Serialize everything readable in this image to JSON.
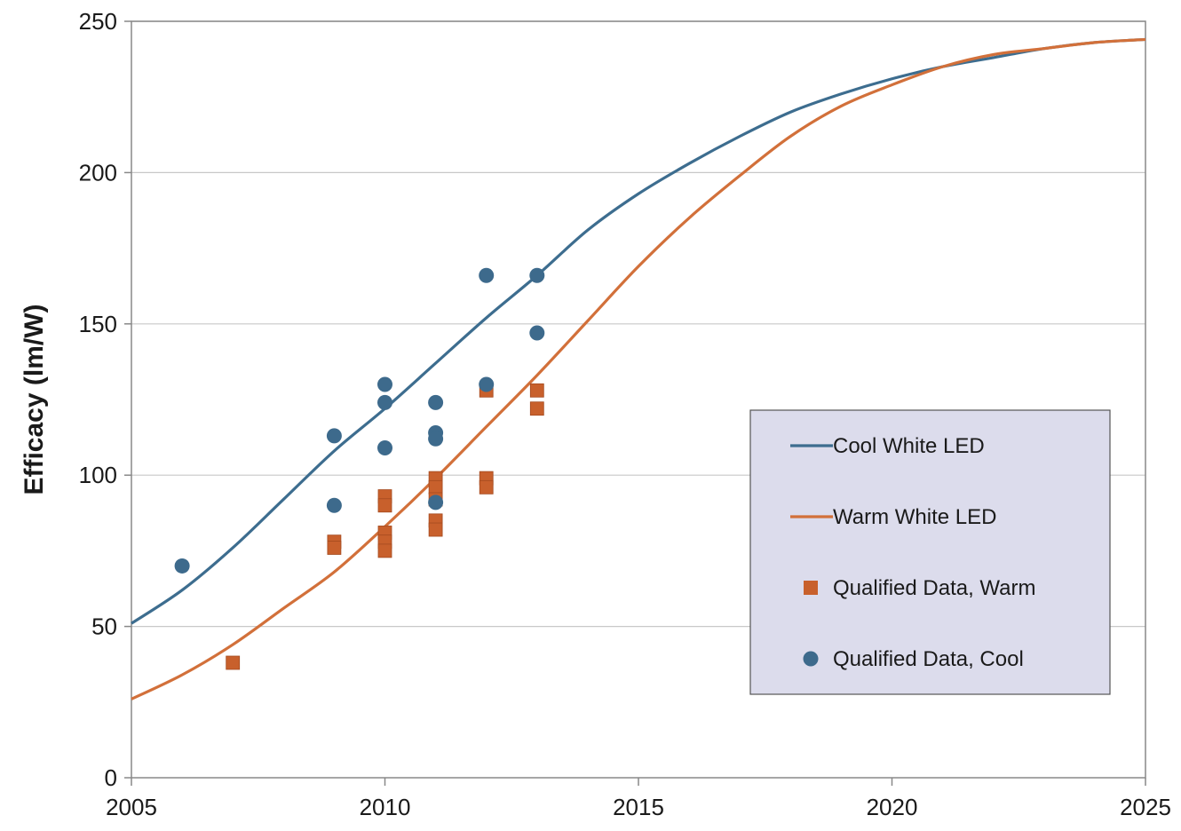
{
  "chart_data": {
    "type": "scatter",
    "title": "",
    "xlabel": "",
    "ylabel": "Efficacy (lm/W)",
    "xlim": [
      2005,
      2025
    ],
    "ylim": [
      0,
      250
    ],
    "x_ticks": [
      "2005",
      "2010",
      "2015",
      "2020",
      "2025"
    ],
    "y_ticks": [
      "0",
      "50",
      "100",
      "150",
      "200",
      "250"
    ],
    "grid": "horizontal",
    "legend_position": "right",
    "series": [
      {
        "name": "Cool White LED",
        "kind": "line",
        "color": "#3d6d8f",
        "x": [
          2005,
          2006,
          2007,
          2008,
          2009,
          2010,
          2011,
          2012,
          2013,
          2014,
          2015,
          2016,
          2017,
          2018,
          2019,
          2020,
          2021,
          2022,
          2023,
          2024,
          2025
        ],
        "y": [
          51,
          62,
          76,
          92,
          108,
          122,
          137,
          152,
          166,
          181,
          193,
          203,
          212,
          220,
          226,
          231,
          235,
          238,
          241,
          243,
          244
        ]
      },
      {
        "name": "Warm White LED",
        "kind": "line",
        "color": "#d2703a",
        "x": [
          2005,
          2006,
          2007,
          2008,
          2009,
          2010,
          2011,
          2012,
          2013,
          2014,
          2015,
          2016,
          2017,
          2018,
          2019,
          2020,
          2021,
          2022,
          2023,
          2024,
          2025
        ],
        "y": [
          26,
          34,
          44,
          56,
          68,
          83,
          99,
          116,
          133,
          151,
          169,
          185,
          199,
          212,
          222,
          229,
          235,
          239,
          241,
          243,
          244
        ]
      },
      {
        "name": "Qualified Data, Warm",
        "kind": "scatter",
        "marker": "square",
        "color": "#c8602c",
        "x": [
          2007,
          2009,
          2009,
          2010,
          2010,
          2010,
          2010,
          2010,
          2011,
          2011,
          2011,
          2011,
          2011,
          2012,
          2012,
          2012,
          2013,
          2013
        ],
        "y": [
          38,
          78,
          76,
          93,
          90,
          81,
          78,
          75,
          99,
          96,
          85,
          82,
          92,
          128,
          99,
          96,
          128,
          122
        ]
      },
      {
        "name": "Qualified Data, Cool",
        "kind": "scatter",
        "marker": "circle",
        "color": "#3d6a8c",
        "x": [
          2006,
          2009,
          2009,
          2010,
          2010,
          2010,
          2011,
          2011,
          2011,
          2011,
          2012,
          2012,
          2013,
          2013
        ],
        "y": [
          70,
          113,
          90,
          130,
          124,
          109,
          124,
          114,
          112,
          91,
          166,
          130,
          166,
          147
        ]
      }
    ]
  }
}
